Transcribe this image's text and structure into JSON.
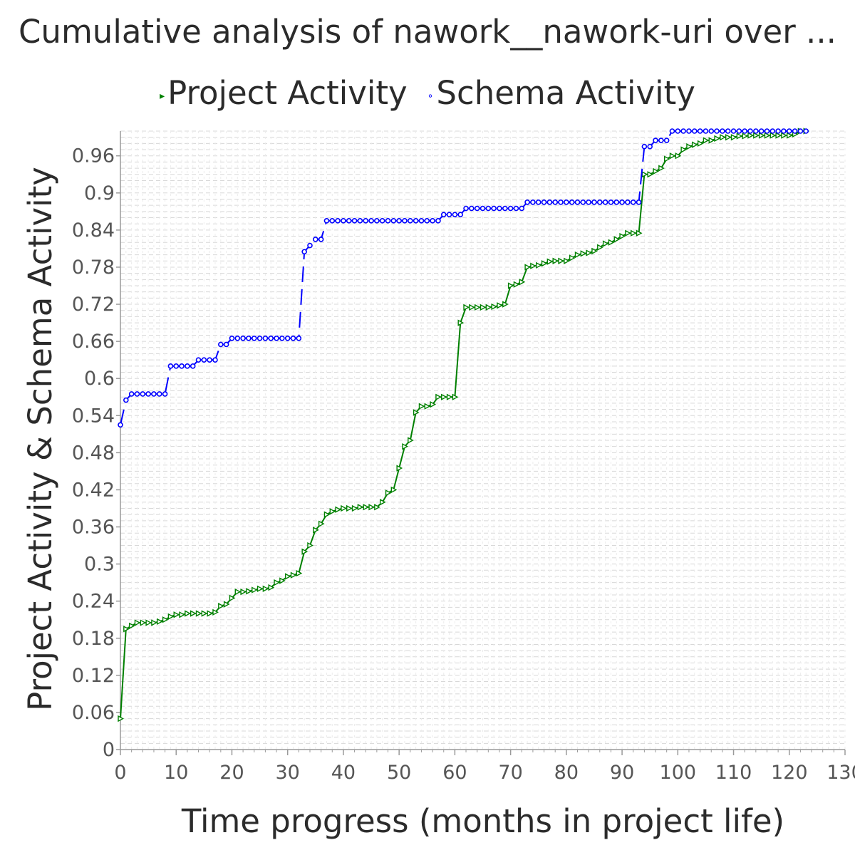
{
  "chart_data": {
    "type": "line",
    "title": "Cumulative analysis of nawork__nawork-uri over ...",
    "xlabel": "Time progress (months in project life)",
    "ylabel": "Project Activity & Schema Activity",
    "xlim": [
      0,
      130
    ],
    "ylim": [
      0,
      1.0
    ],
    "x_ticks": [
      0,
      10,
      20,
      30,
      40,
      50,
      60,
      70,
      80,
      90,
      100,
      110,
      120,
      130
    ],
    "y_ticks": [
      0,
      0.06,
      0.12,
      0.18,
      0.24,
      0.3,
      0.36,
      0.42,
      0.48,
      0.54,
      0.6,
      0.66,
      0.72,
      0.78,
      0.84,
      0.9,
      0.96
    ],
    "y_tick_labels": [
      "0",
      "0.06",
      "0.12",
      "0.18",
      "0.24",
      "0.3",
      "0.36",
      "0.42",
      "0.48",
      "0.54",
      "0.6",
      "0.66",
      "0.72",
      "0.78",
      "0.84",
      "0.9",
      "0.96"
    ],
    "grid": true,
    "legend_position": "top-center",
    "series": [
      {
        "name": "Project Activity",
        "color": "#008000",
        "marker": "triangle-right",
        "line_style": "solid",
        "points": [
          [
            0,
            0.05
          ],
          [
            1,
            0.195
          ],
          [
            2,
            0.2
          ],
          [
            3,
            0.205
          ],
          [
            4,
            0.205
          ],
          [
            5,
            0.205
          ],
          [
            6,
            0.205
          ],
          [
            7,
            0.207
          ],
          [
            8,
            0.21
          ],
          [
            9,
            0.215
          ],
          [
            10,
            0.218
          ],
          [
            11,
            0.218
          ],
          [
            12,
            0.22
          ],
          [
            13,
            0.22
          ],
          [
            14,
            0.22
          ],
          [
            15,
            0.22
          ],
          [
            16,
            0.22
          ],
          [
            17,
            0.222
          ],
          [
            18,
            0.232
          ],
          [
            19,
            0.235
          ],
          [
            20,
            0.245
          ],
          [
            21,
            0.255
          ],
          [
            22,
            0.255
          ],
          [
            23,
            0.256
          ],
          [
            24,
            0.258
          ],
          [
            25,
            0.26
          ],
          [
            26,
            0.26
          ],
          [
            27,
            0.262
          ],
          [
            28,
            0.27
          ],
          [
            29,
            0.273
          ],
          [
            30,
            0.28
          ],
          [
            31,
            0.282
          ],
          [
            32,
            0.285
          ],
          [
            33,
            0.32
          ],
          [
            34,
            0.33
          ],
          [
            35,
            0.355
          ],
          [
            36,
            0.365
          ],
          [
            37,
            0.38
          ],
          [
            38,
            0.385
          ],
          [
            39,
            0.388
          ],
          [
            40,
            0.39
          ],
          [
            41,
            0.39
          ],
          [
            42,
            0.39
          ],
          [
            43,
            0.392
          ],
          [
            44,
            0.392
          ],
          [
            45,
            0.392
          ],
          [
            46,
            0.392
          ],
          [
            47,
            0.4
          ],
          [
            48,
            0.415
          ],
          [
            49,
            0.42
          ],
          [
            50,
            0.455
          ],
          [
            51,
            0.49
          ],
          [
            52,
            0.5
          ],
          [
            53,
            0.545
          ],
          [
            54,
            0.555
          ],
          [
            55,
            0.555
          ],
          [
            56,
            0.558
          ],
          [
            57,
            0.57
          ],
          [
            58,
            0.57
          ],
          [
            59,
            0.57
          ],
          [
            60,
            0.57
          ],
          [
            61,
            0.69
          ],
          [
            62,
            0.715
          ],
          [
            63,
            0.715
          ],
          [
            64,
            0.715
          ],
          [
            65,
            0.715
          ],
          [
            66,
            0.715
          ],
          [
            67,
            0.716
          ],
          [
            68,
            0.718
          ],
          [
            69,
            0.72
          ],
          [
            70,
            0.75
          ],
          [
            71,
            0.752
          ],
          [
            72,
            0.756
          ],
          [
            73,
            0.78
          ],
          [
            74,
            0.782
          ],
          [
            75,
            0.783
          ],
          [
            76,
            0.786
          ],
          [
            77,
            0.789
          ],
          [
            78,
            0.79
          ],
          [
            79,
            0.79
          ],
          [
            80,
            0.79
          ],
          [
            81,
            0.795
          ],
          [
            82,
            0.8
          ],
          [
            83,
            0.802
          ],
          [
            84,
            0.803
          ],
          [
            85,
            0.806
          ],
          [
            86,
            0.812
          ],
          [
            87,
            0.818
          ],
          [
            88,
            0.82
          ],
          [
            89,
            0.825
          ],
          [
            90,
            0.83
          ],
          [
            91,
            0.835
          ],
          [
            92,
            0.835
          ],
          [
            93,
            0.835
          ],
          [
            94,
            0.93
          ],
          [
            95,
            0.93
          ],
          [
            96,
            0.935
          ],
          [
            97,
            0.94
          ],
          [
            98,
            0.955
          ],
          [
            99,
            0.96
          ],
          [
            100,
            0.96
          ],
          [
            101,
            0.97
          ],
          [
            102,
            0.975
          ],
          [
            103,
            0.978
          ],
          [
            104,
            0.98
          ],
          [
            105,
            0.985
          ],
          [
            106,
            0.985
          ],
          [
            107,
            0.988
          ],
          [
            108,
            0.99
          ],
          [
            109,
            0.99
          ],
          [
            110,
            0.99
          ],
          [
            111,
            0.992
          ],
          [
            112,
            0.992
          ],
          [
            113,
            0.993
          ],
          [
            114,
            0.993
          ],
          [
            115,
            0.993
          ],
          [
            116,
            0.993
          ],
          [
            117,
            0.993
          ],
          [
            118,
            0.993
          ],
          [
            119,
            0.993
          ],
          [
            120,
            0.993
          ],
          [
            121,
            0.995
          ],
          [
            122,
            1.0
          ],
          [
            123,
            1.0
          ]
        ]
      },
      {
        "name": "Schema Activity",
        "color": "#0000FF",
        "marker": "circle",
        "line_style": "dashed",
        "points": [
          [
            0,
            0.525
          ],
          [
            1,
            0.565
          ],
          [
            2,
            0.575
          ],
          [
            3,
            0.575
          ],
          [
            4,
            0.575
          ],
          [
            5,
            0.575
          ],
          [
            6,
            0.575
          ],
          [
            7,
            0.575
          ],
          [
            8,
            0.575
          ],
          [
            9,
            0.62
          ],
          [
            10,
            0.62
          ],
          [
            11,
            0.62
          ],
          [
            12,
            0.62
          ],
          [
            13,
            0.62
          ],
          [
            14,
            0.63
          ],
          [
            15,
            0.63
          ],
          [
            16,
            0.63
          ],
          [
            17,
            0.63
          ],
          [
            18,
            0.655
          ],
          [
            19,
            0.655
          ],
          [
            20,
            0.665
          ],
          [
            21,
            0.665
          ],
          [
            22,
            0.665
          ],
          [
            23,
            0.665
          ],
          [
            24,
            0.665
          ],
          [
            25,
            0.665
          ],
          [
            26,
            0.665
          ],
          [
            27,
            0.665
          ],
          [
            28,
            0.665
          ],
          [
            29,
            0.665
          ],
          [
            30,
            0.665
          ],
          [
            31,
            0.665
          ],
          [
            32,
            0.665
          ],
          [
            33,
            0.805
          ],
          [
            34,
            0.815
          ],
          [
            35,
            0.825
          ],
          [
            36,
            0.825
          ],
          [
            37,
            0.855
          ],
          [
            38,
            0.855
          ],
          [
            39,
            0.855
          ],
          [
            40,
            0.855
          ],
          [
            41,
            0.855
          ],
          [
            42,
            0.855
          ],
          [
            43,
            0.855
          ],
          [
            44,
            0.855
          ],
          [
            45,
            0.855
          ],
          [
            46,
            0.855
          ],
          [
            47,
            0.855
          ],
          [
            48,
            0.855
          ],
          [
            49,
            0.855
          ],
          [
            50,
            0.855
          ],
          [
            51,
            0.855
          ],
          [
            52,
            0.855
          ],
          [
            53,
            0.855
          ],
          [
            54,
            0.855
          ],
          [
            55,
            0.855
          ],
          [
            56,
            0.855
          ],
          [
            57,
            0.855
          ],
          [
            58,
            0.865
          ],
          [
            59,
            0.865
          ],
          [
            60,
            0.865
          ],
          [
            61,
            0.865
          ],
          [
            62,
            0.875
          ],
          [
            63,
            0.875
          ],
          [
            64,
            0.875
          ],
          [
            65,
            0.875
          ],
          [
            66,
            0.875
          ],
          [
            67,
            0.875
          ],
          [
            68,
            0.875
          ],
          [
            69,
            0.875
          ],
          [
            70,
            0.875
          ],
          [
            71,
            0.875
          ],
          [
            72,
            0.875
          ],
          [
            73,
            0.885
          ],
          [
            74,
            0.885
          ],
          [
            75,
            0.885
          ],
          [
            76,
            0.885
          ],
          [
            77,
            0.885
          ],
          [
            78,
            0.885
          ],
          [
            79,
            0.885
          ],
          [
            80,
            0.885
          ],
          [
            81,
            0.885
          ],
          [
            82,
            0.885
          ],
          [
            83,
            0.885
          ],
          [
            84,
            0.885
          ],
          [
            85,
            0.885
          ],
          [
            86,
            0.885
          ],
          [
            87,
            0.885
          ],
          [
            88,
            0.885
          ],
          [
            89,
            0.885
          ],
          [
            90,
            0.885
          ],
          [
            91,
            0.885
          ],
          [
            92,
            0.885
          ],
          [
            93,
            0.885
          ],
          [
            94,
            0.975
          ],
          [
            95,
            0.975
          ],
          [
            96,
            0.985
          ],
          [
            97,
            0.985
          ],
          [
            98,
            0.985
          ],
          [
            99,
            1.0
          ],
          [
            100,
            1.0
          ],
          [
            101,
            1.0
          ],
          [
            102,
            1.0
          ],
          [
            103,
            1.0
          ],
          [
            104,
            1.0
          ],
          [
            105,
            1.0
          ],
          [
            106,
            1.0
          ],
          [
            107,
            1.0
          ],
          [
            108,
            1.0
          ],
          [
            109,
            1.0
          ],
          [
            110,
            1.0
          ],
          [
            111,
            1.0
          ],
          [
            112,
            1.0
          ],
          [
            113,
            1.0
          ],
          [
            114,
            1.0
          ],
          [
            115,
            1.0
          ],
          [
            116,
            1.0
          ],
          [
            117,
            1.0
          ],
          [
            118,
            1.0
          ],
          [
            119,
            1.0
          ],
          [
            120,
            1.0
          ],
          [
            121,
            1.0
          ],
          [
            122,
            1.0
          ],
          [
            123,
            1.0
          ]
        ]
      }
    ]
  },
  "legend": {
    "items": [
      {
        "label": "Project Activity",
        "marker": "▸",
        "color": "#008000"
      },
      {
        "label": "Schema Activity",
        "marker": "∘",
        "color": "#0000FF"
      }
    ]
  }
}
